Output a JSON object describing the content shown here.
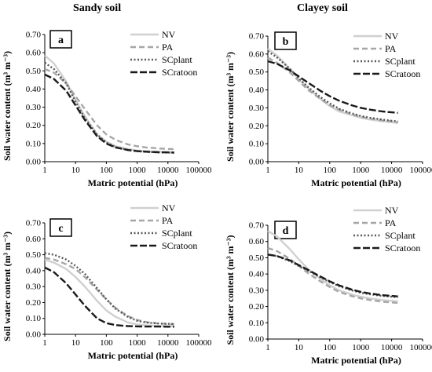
{
  "column_titles": [
    "Sandy soil",
    "Clayey soil"
  ],
  "chart_data": [
    {
      "type": "line",
      "panel_letter": "a",
      "xlabel": "Matric potential (hPa)",
      "ylabel": "Soil water content (m³ m⁻³)",
      "xscale": "log",
      "xlim": [
        1,
        100000
      ],
      "ylim": [
        0,
        0.7
      ],
      "x_ticks": [
        "1",
        "10",
        "100",
        "1000",
        "10000",
        "100000"
      ],
      "y_ticks": [
        "0.00",
        "0.10",
        "0.20",
        "0.30",
        "0.40",
        "0.50",
        "0.60",
        "0.70"
      ],
      "legend_position": "top-right",
      "grid": false,
      "x": [
        1,
        2,
        5,
        10,
        20,
        50,
        100,
        200,
        500,
        1000,
        2000,
        5000,
        10000,
        16000
      ],
      "series": [
        {
          "name": "NV",
          "color": "#d0d0d0",
          "dash": "solid",
          "values": [
            0.585,
            0.54,
            0.44,
            0.34,
            0.25,
            0.15,
            0.11,
            0.085,
            0.07,
            0.062,
            0.058,
            0.055,
            0.053,
            0.052
          ]
        },
        {
          "name": "PA",
          "color": "#a6a6a6",
          "dash": "dashed",
          "values": [
            0.51,
            0.49,
            0.43,
            0.36,
            0.29,
            0.2,
            0.15,
            0.12,
            0.095,
            0.085,
            0.078,
            0.073,
            0.07,
            0.069
          ]
        },
        {
          "name": "SCplant",
          "color": "#595959",
          "dash": "dotted",
          "values": [
            0.545,
            0.51,
            0.43,
            0.33,
            0.24,
            0.15,
            0.105,
            0.08,
            0.065,
            0.058,
            0.054,
            0.051,
            0.05,
            0.049
          ]
        },
        {
          "name": "SCratoon",
          "color": "#1a1a1a",
          "dash": "longdash",
          "values": [
            0.48,
            0.455,
            0.39,
            0.31,
            0.23,
            0.14,
            0.1,
            0.078,
            0.064,
            0.058,
            0.055,
            0.052,
            0.051,
            0.05
          ]
        }
      ]
    },
    {
      "type": "line",
      "panel_letter": "b",
      "xlabel": "Matric potential (hPa)",
      "ylabel": "Soil water content (m³ m⁻³)",
      "xscale": "log",
      "xlim": [
        1,
        100000
      ],
      "ylim": [
        0,
        0.7
      ],
      "x_ticks": [
        "1",
        "10",
        "100",
        "1000",
        "10000",
        "100000"
      ],
      "y_ticks": [
        "0.00",
        "0.10",
        "0.20",
        "0.30",
        "0.40",
        "0.50",
        "0.60",
        "0.70"
      ],
      "legend_position": "top-right",
      "grid": false,
      "x": [
        1,
        2,
        5,
        10,
        20,
        50,
        100,
        200,
        500,
        1000,
        2000,
        5000,
        10000,
        16000
      ],
      "series": [
        {
          "name": "NV",
          "color": "#d0d0d0",
          "dash": "solid",
          "values": [
            0.63,
            0.59,
            0.52,
            0.46,
            0.41,
            0.35,
            0.31,
            0.28,
            0.26,
            0.245,
            0.235,
            0.225,
            0.22,
            0.215
          ]
        },
        {
          "name": "PA",
          "color": "#a6a6a6",
          "dash": "dashed",
          "values": [
            0.58,
            0.55,
            0.5,
            0.45,
            0.4,
            0.35,
            0.315,
            0.29,
            0.265,
            0.25,
            0.24,
            0.23,
            0.225,
            0.22
          ]
        },
        {
          "name": "SCplant",
          "color": "#595959",
          "dash": "dotted",
          "values": [
            0.615,
            0.58,
            0.52,
            0.465,
            0.415,
            0.36,
            0.325,
            0.295,
            0.27,
            0.255,
            0.245,
            0.235,
            0.228,
            0.225
          ]
        },
        {
          "name": "SCratoon",
          "color": "#1a1a1a",
          "dash": "longdash",
          "values": [
            0.56,
            0.545,
            0.51,
            0.475,
            0.44,
            0.395,
            0.365,
            0.34,
            0.315,
            0.3,
            0.29,
            0.28,
            0.275,
            0.272
          ]
        }
      ]
    },
    {
      "type": "line",
      "panel_letter": "c",
      "xlabel": "Matric potential (hPa)",
      "ylabel": "Soil water content (m³ m⁻³)",
      "xscale": "log",
      "xlim": [
        1,
        100000
      ],
      "ylim": [
        0,
        0.7
      ],
      "x_ticks": [
        "1",
        "10",
        "100",
        "1000",
        "10000",
        "100000"
      ],
      "y_ticks": [
        "0.00",
        "0.10",
        "0.20",
        "0.30",
        "0.40",
        "0.50",
        "0.60",
        "0.70"
      ],
      "legend_position": "top-right",
      "grid": false,
      "x": [
        1,
        2,
        5,
        10,
        20,
        50,
        100,
        200,
        500,
        1000,
        2000,
        5000,
        10000,
        16000
      ],
      "series": [
        {
          "name": "NV",
          "color": "#d0d0d0",
          "dash": "solid",
          "values": [
            0.47,
            0.45,
            0.41,
            0.36,
            0.3,
            0.21,
            0.15,
            0.11,
            0.075,
            0.062,
            0.056,
            0.053,
            0.052,
            0.052
          ]
        },
        {
          "name": "PA",
          "color": "#a6a6a6",
          "dash": "dashed",
          "values": [
            0.48,
            0.47,
            0.44,
            0.41,
            0.36,
            0.28,
            0.22,
            0.165,
            0.115,
            0.09,
            0.077,
            0.068,
            0.065,
            0.064
          ]
        },
        {
          "name": "SCplant",
          "color": "#595959",
          "dash": "dotted",
          "values": [
            0.51,
            0.5,
            0.47,
            0.43,
            0.38,
            0.29,
            0.22,
            0.16,
            0.11,
            0.085,
            0.074,
            0.068,
            0.066,
            0.065
          ]
        },
        {
          "name": "SCratoon",
          "color": "#1a1a1a",
          "dash": "longdash",
          "values": [
            0.42,
            0.39,
            0.32,
            0.25,
            0.18,
            0.1,
            0.07,
            0.058,
            0.052,
            0.05,
            0.049,
            0.049,
            0.048,
            0.048
          ]
        }
      ]
    },
    {
      "type": "line",
      "panel_letter": "d",
      "xlabel": "Matric potential (hPa)",
      "ylabel": "Soil water content (m³ m⁻³)",
      "xscale": "log",
      "xlim": [
        1,
        100000
      ],
      "ylim": [
        0,
        0.7
      ],
      "x_ticks": [
        "1",
        "10",
        "100",
        "1000",
        "10000",
        "100000"
      ],
      "y_ticks": [
        "0.00",
        "0.10",
        "0.20",
        "0.30",
        "0.40",
        "0.50",
        "0.60",
        "0.70"
      ],
      "legend_position": "top-right",
      "grid": false,
      "x": [
        1,
        2,
        5,
        10,
        20,
        50,
        100,
        200,
        500,
        1000,
        2000,
        5000,
        10000,
        16000
      ],
      "series": [
        {
          "name": "NV",
          "color": "#d0d0d0",
          "dash": "solid",
          "values": [
            0.665,
            0.63,
            0.555,
            0.49,
            0.43,
            0.37,
            0.33,
            0.3,
            0.275,
            0.26,
            0.25,
            0.24,
            0.235,
            0.232
          ]
        },
        {
          "name": "PA",
          "color": "#a6a6a6",
          "dash": "dashed",
          "values": [
            0.56,
            0.54,
            0.495,
            0.45,
            0.405,
            0.355,
            0.32,
            0.29,
            0.265,
            0.25,
            0.24,
            0.23,
            0.225,
            0.222
          ]
        },
        {
          "name": "SCplant",
          "color": "#595959",
          "dash": "dotted",
          "values": [
            0.52,
            0.51,
            0.48,
            0.45,
            0.42,
            0.38,
            0.35,
            0.325,
            0.3,
            0.285,
            0.275,
            0.265,
            0.26,
            0.258
          ]
        },
        {
          "name": "SCratoon",
          "color": "#1a1a1a",
          "dash": "longdash",
          "values": [
            0.52,
            0.51,
            0.485,
            0.455,
            0.425,
            0.385,
            0.355,
            0.33,
            0.305,
            0.29,
            0.28,
            0.27,
            0.265,
            0.262
          ]
        }
      ]
    }
  ]
}
